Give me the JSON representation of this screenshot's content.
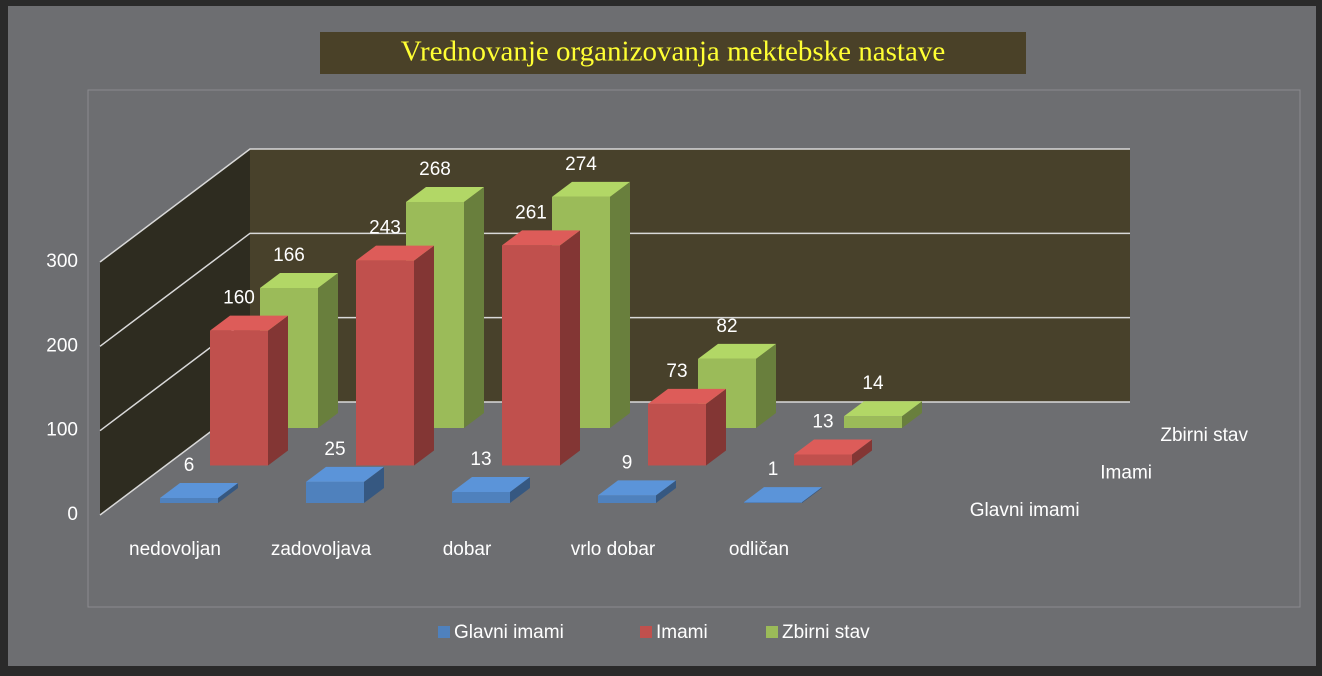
{
  "chart_data": {
    "type": "bar3d",
    "title": "Vrednovanje organizovanja mektebske nastave",
    "categories": [
      "nedovoljan",
      "zadovoljava",
      "dobar",
      "vrlo dobar",
      "odličan"
    ],
    "series": [
      {
        "name": "Glavni imami",
        "color": "#4f81bd",
        "values": [
          6,
          25,
          13,
          9,
          1
        ]
      },
      {
        "name": "Imami",
        "color": "#c0504d",
        "values": [
          160,
          243,
          261,
          73,
          13
        ]
      },
      {
        "name": "Zbirni stav",
        "color": "#9bbb59",
        "values": [
          166,
          268,
          274,
          82,
          14
        ]
      }
    ],
    "ylim": [
      0,
      300
    ],
    "yticks": [
      0,
      100,
      200,
      300
    ],
    "grid": true,
    "legend": "bottom"
  }
}
